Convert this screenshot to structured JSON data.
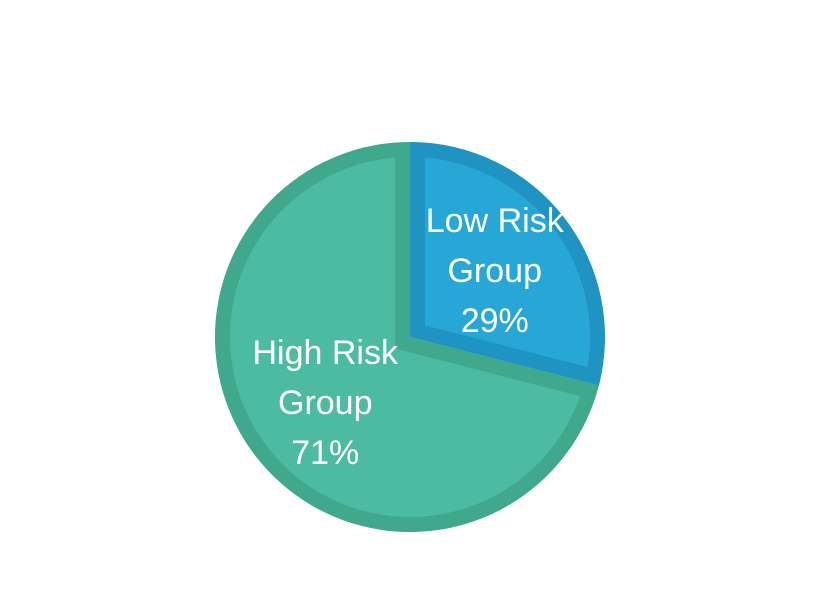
{
  "chart_data": {
    "type": "pie",
    "categories": [
      "Low Risk Group",
      "High Risk Group"
    ],
    "values": [
      29,
      71
    ],
    "value_labels": [
      "29%",
      "71%"
    ],
    "colors": [
      "#27a7d6",
      "#4dbba1"
    ],
    "edge_colors": [
      "#1f93c2",
      "#40a98d"
    ]
  }
}
